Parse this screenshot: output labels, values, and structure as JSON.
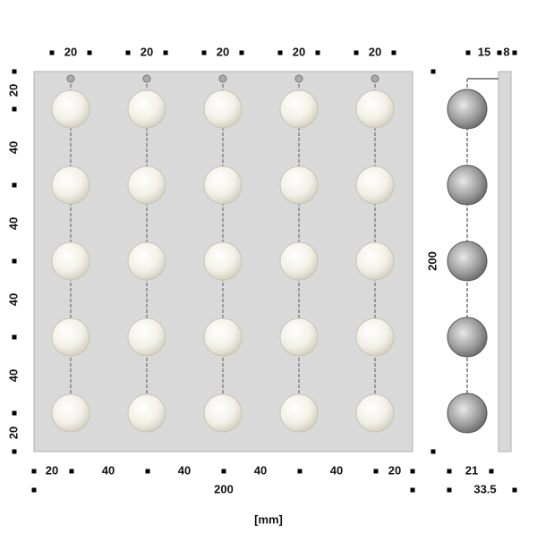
{
  "top_dims": [
    "20",
    "20",
    "20",
    "20",
    "20"
  ],
  "side_top_dims": [
    "15",
    "8"
  ],
  "left_dims": [
    "20",
    "40",
    "40",
    "40",
    "40",
    "20"
  ],
  "side_height": "200",
  "bottom_dims": [
    "20",
    "40",
    "40",
    "40",
    "40",
    "20"
  ],
  "total_width": "200",
  "side_bottom_dims": [
    "21",
    "33.5"
  ],
  "unit": "[mm]"
}
